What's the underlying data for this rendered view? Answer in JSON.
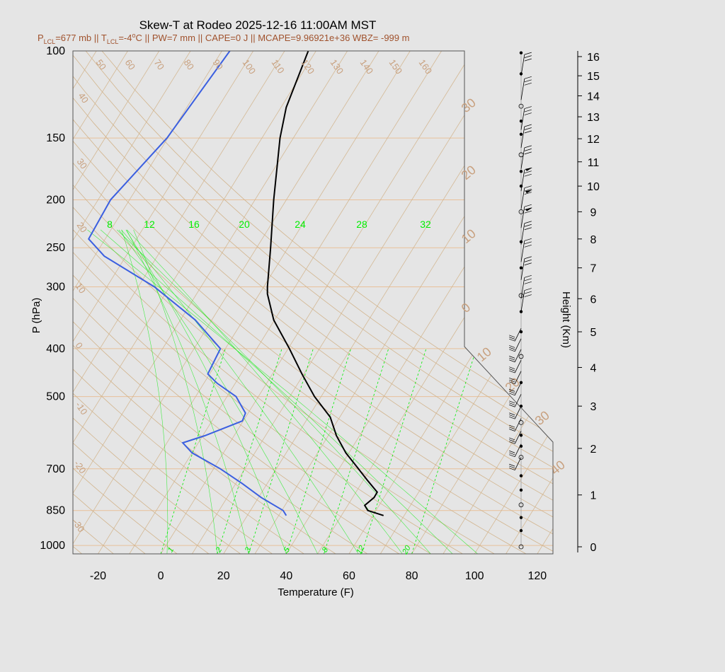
{
  "title": "Skew-T at Rodeo 2025-12-16 11:00AM MST",
  "subtitle_parts": {
    "p_lcl": "P",
    "p_lcl_sub": "LCL",
    "p_lcl_val": "=677 mb || T",
    "t_lcl_sub": "LCL",
    "t_lcl_val": "=-4",
    "deg": "o",
    "rest": "C || PW=7 mm || CAPE=0 J || MCAPE=9.96921e+36 WBZ= -999 m"
  },
  "colors": {
    "temperature": "#000000",
    "dewpoint": "#3b5fe0",
    "mixing_ratio": "#00ee00",
    "isotherm_adiabat": "#d2b48c",
    "isobar": "#e8c09a",
    "wind": "#000000",
    "background": "#e5e5e5"
  },
  "chart_data": {
    "type": "skew-t",
    "title": "Skew-T at Rodeo 2025-12-16 11:00AM MST",
    "xlabel": "Temperature (F)",
    "ylabel": "P (hPa)",
    "y2label": "Height (Km)",
    "x_range": [
      -28,
      125
    ],
    "y_range_hpa": [
      1040,
      100
    ],
    "x_ticks": [
      -20,
      0,
      20,
      40,
      60,
      80,
      100,
      120
    ],
    "pressure_ticks": [
      100,
      150,
      200,
      250,
      300,
      400,
      500,
      700,
      850,
      1000
    ],
    "height_ticks_km": [
      0,
      1,
      2,
      3,
      4,
      5,
      6,
      7,
      8,
      9,
      10,
      11,
      12,
      13,
      14,
      15,
      16
    ],
    "mixing_ratio_top_labels": [
      "8",
      "12",
      "16",
      "20",
      "24",
      "28",
      "32"
    ],
    "mixing_ratio_bottom_labels": [
      "1",
      "2",
      "3",
      "5",
      "8",
      "12",
      "20"
    ],
    "isotherm_labels_top": [
      "50",
      "60",
      "70",
      "80",
      "90",
      "100",
      "110",
      "120",
      "130",
      "140",
      "150",
      "160"
    ],
    "isotherm_labels_left": [
      "40",
      "30",
      "20",
      "10",
      "0",
      "-10",
      "-20",
      "-30"
    ],
    "isotherm_labels_right": [
      "30",
      "20",
      "10",
      "0",
      "10",
      "20",
      "30",
      "40"
    ],
    "temperature_profile": {
      "name": "Temperature",
      "points": [
        [
          870,
          71
        ],
        [
          850,
          66
        ],
        [
          830,
          65
        ],
        [
          800,
          68
        ],
        [
          780,
          69
        ],
        [
          740,
          66
        ],
        [
          700,
          63
        ],
        [
          650,
          59
        ],
        [
          600,
          56
        ],
        [
          550,
          54
        ],
        [
          500,
          49
        ],
        [
          450,
          45
        ],
        [
          400,
          41
        ],
        [
          350,
          36
        ],
        [
          310,
          34
        ],
        [
          300,
          34
        ],
        [
          250,
          35
        ],
        [
          200,
          36
        ],
        [
          150,
          38
        ],
        [
          130,
          40
        ],
        [
          100,
          47
        ]
      ]
    },
    "dewpoint_profile": {
      "name": "Dewpoint",
      "points": [
        [
          870,
          40
        ],
        [
          850,
          39
        ],
        [
          800,
          32
        ],
        [
          750,
          26
        ],
        [
          700,
          19
        ],
        [
          650,
          10
        ],
        [
          620,
          7
        ],
        [
          600,
          14
        ],
        [
          560,
          26
        ],
        [
          540,
          27
        ],
        [
          500,
          24
        ],
        [
          470,
          18
        ],
        [
          450,
          15
        ],
        [
          400,
          19
        ],
        [
          350,
          11
        ],
        [
          300,
          -2
        ],
        [
          260,
          -18
        ],
        [
          240,
          -23
        ],
        [
          200,
          -16
        ],
        [
          150,
          2
        ],
        [
          100,
          22
        ]
      ]
    },
    "wind_column": {
      "marker_heights_km": [
        0,
        0.3,
        0.55,
        0.8,
        1.1,
        1.4,
        1.8,
        2.05,
        2.3,
        2.6,
        3.0,
        3.6,
        4.3,
        5.0,
        5.6,
        6.1,
        7.0,
        7.9,
        9.0,
        10.0,
        10.6,
        11.3,
        12.2,
        12.8,
        13.5,
        15.1,
        16.2
      ],
      "barb_heights_km": [
        1.8,
        2.1,
        2.4,
        2.7,
        3.0,
        3.3,
        3.6,
        3.9,
        4.2,
        4.5,
        4.8,
        5.1,
        5.6,
        6.0,
        6.6,
        7.2,
        7.8,
        8.4,
        9.1,
        9.8,
        10.7,
        11.6,
        12.4,
        13.8,
        15.0
      ],
      "pennant_heights_km": [
        9.1,
        9.8,
        10.7
      ]
    }
  }
}
